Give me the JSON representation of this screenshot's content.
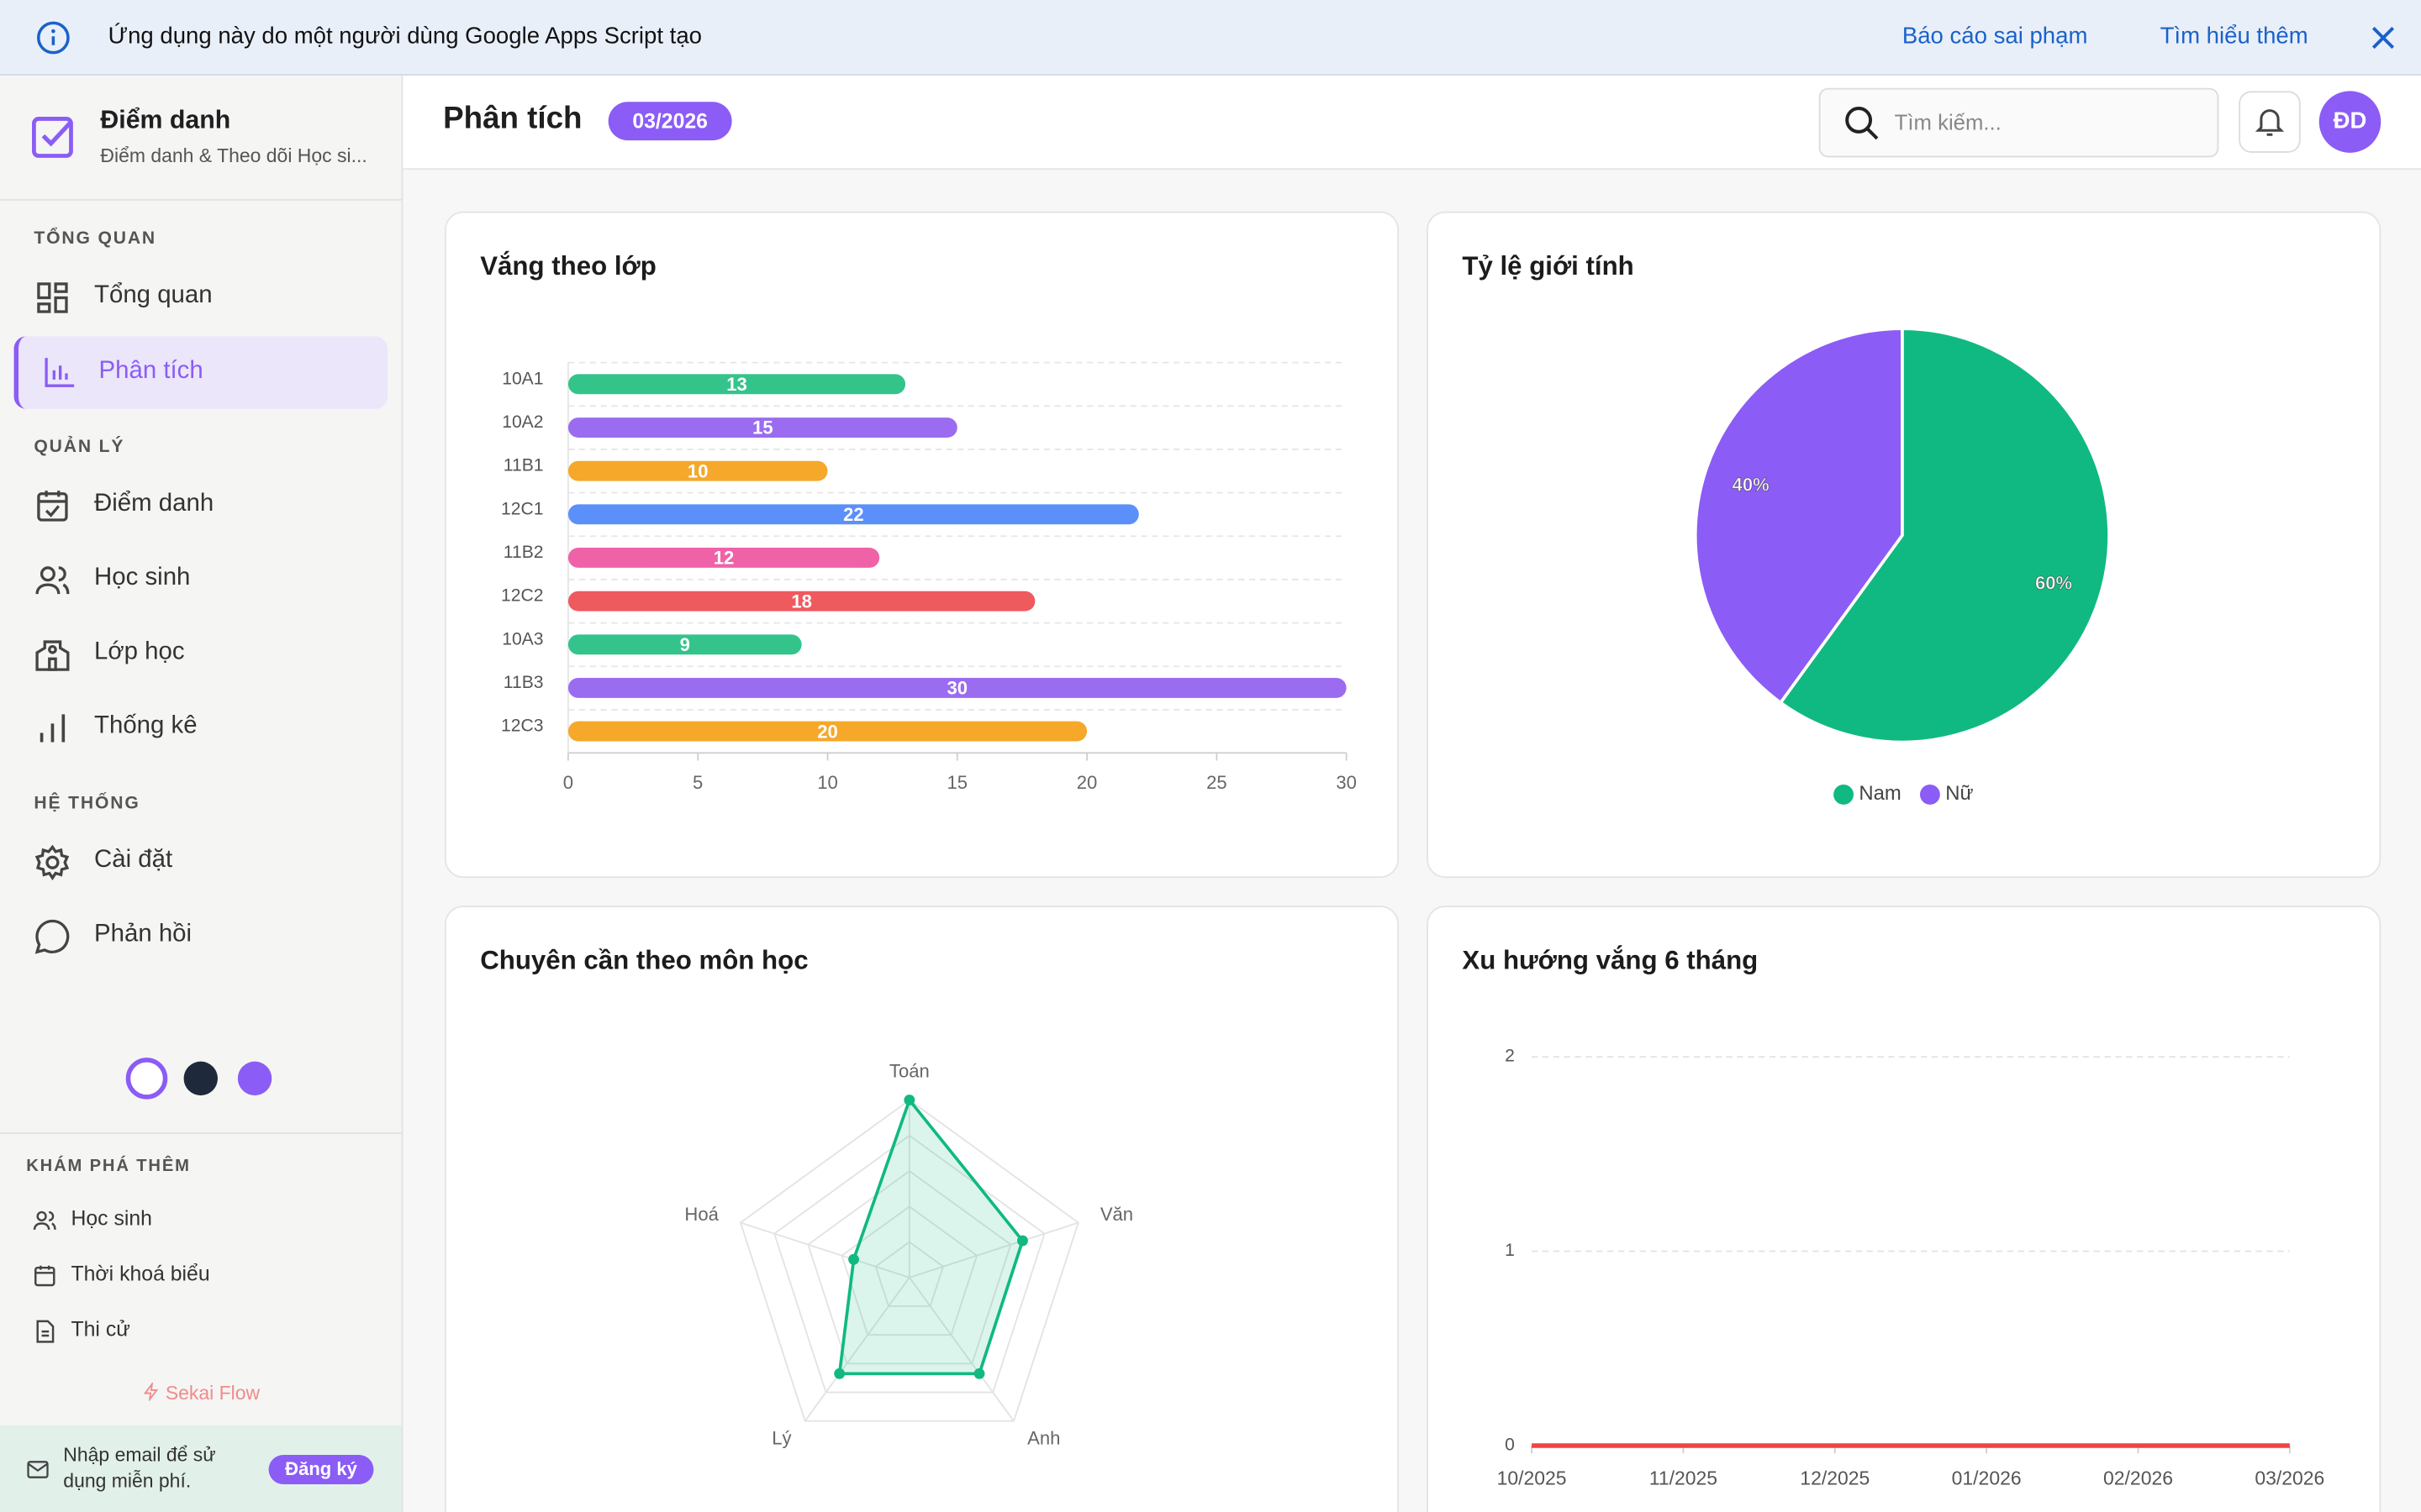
{
  "banner": {
    "text": "Ứng dụng này do một người dùng Google Apps Script tạo",
    "links": [
      "Báo cáo sai phạm",
      "Tìm hiểu thêm"
    ]
  },
  "sidebar": {
    "app_title": "Điểm danh",
    "app_subtitle": "Điểm danh & Theo dõi Học si...",
    "sections": [
      {
        "title": "TỔNG QUAN",
        "items": [
          "Tổng quan",
          "Phân tích"
        ]
      },
      {
        "title": "QUẢN LÝ",
        "items": [
          "Điểm danh",
          "Học sinh",
          "Lớp học",
          "Thống kê"
        ]
      },
      {
        "title": "HỆ THỐNG",
        "items": [
          "Cài đặt",
          "Phản hồi"
        ]
      }
    ],
    "explore": {
      "title": "KHÁM PHÁ THÊM",
      "items": [
        "Học sinh",
        "Thời khoá biểu",
        "Thi cử"
      ]
    },
    "brand": "Sekai Flow",
    "signup": {
      "text": "Nhập email để sử dụng miễn phí.",
      "button": "Đăng ký"
    }
  },
  "header": {
    "title": "Phân tích",
    "period": "03/2026",
    "search_placeholder": "Tìm kiếm...",
    "avatar": "ĐD"
  },
  "chart_data": [
    {
      "type": "bar",
      "orientation": "horizontal",
      "title": "Vắng theo lớp",
      "categories": [
        "10A1",
        "10A2",
        "11B1",
        "12C1",
        "11B2",
        "12C2",
        "10A3",
        "11B3",
        "12C3"
      ],
      "values": [
        13,
        15,
        10,
        22,
        12,
        18,
        9,
        30,
        20
      ],
      "colors": [
        "#34c48b",
        "#9b6cf0",
        "#f5a82a",
        "#5b8ff9",
        "#f062a8",
        "#ef5a5f",
        "#34c48b",
        "#9b6cf0",
        "#f5a82a"
      ],
      "xlim": [
        0,
        30
      ],
      "xticks": [
        0,
        5,
        10,
        15,
        20,
        25,
        30
      ]
    },
    {
      "type": "pie",
      "title": "Tỷ lệ giới tính",
      "categories": [
        "Nam",
        "Nữ"
      ],
      "values": [
        60,
        40
      ],
      "value_labels": [
        "60%",
        "40%"
      ],
      "colors": [
        "#10b981",
        "#8b5cf6"
      ],
      "legend": "bottom"
    },
    {
      "type": "radar",
      "title": "Chuyên cần theo môn học",
      "categories": [
        "Toán",
        "Văn",
        "Anh",
        "Lý",
        "Hoá"
      ],
      "values": [
        100,
        67,
        67,
        67,
        33
      ],
      "rlim": [
        0,
        100
      ],
      "color": "#10b981"
    },
    {
      "type": "line",
      "title": "Xu hướng vắng 6 tháng",
      "x": [
        "10/2025",
        "11/2025",
        "12/2025",
        "01/2026",
        "02/2026",
        "03/2026"
      ],
      "values": [
        0,
        0,
        0,
        0,
        0,
        0
      ],
      "color": "#ef4444",
      "ylim": [
        0,
        2
      ],
      "yticks": [
        0,
        1,
        2
      ],
      "grid": true
    }
  ]
}
